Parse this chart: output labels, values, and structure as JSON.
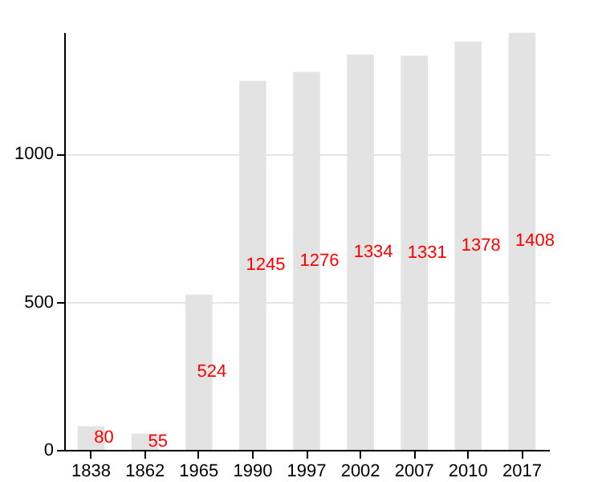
{
  "chart_data": {
    "type": "bar",
    "categories": [
      "1838",
      "1862",
      "1965",
      "1990",
      "1997",
      "2002",
      "2007",
      "2010",
      "2017"
    ],
    "values": [
      80,
      55,
      524,
      1245,
      1276,
      1334,
      1331,
      1378,
      1408
    ],
    "color": "#e3e3e3",
    "ylim": [
      0,
      1410
    ],
    "yticks": [
      0,
      500,
      1000
    ],
    "grid": "y",
    "data_labels": true
  }
}
